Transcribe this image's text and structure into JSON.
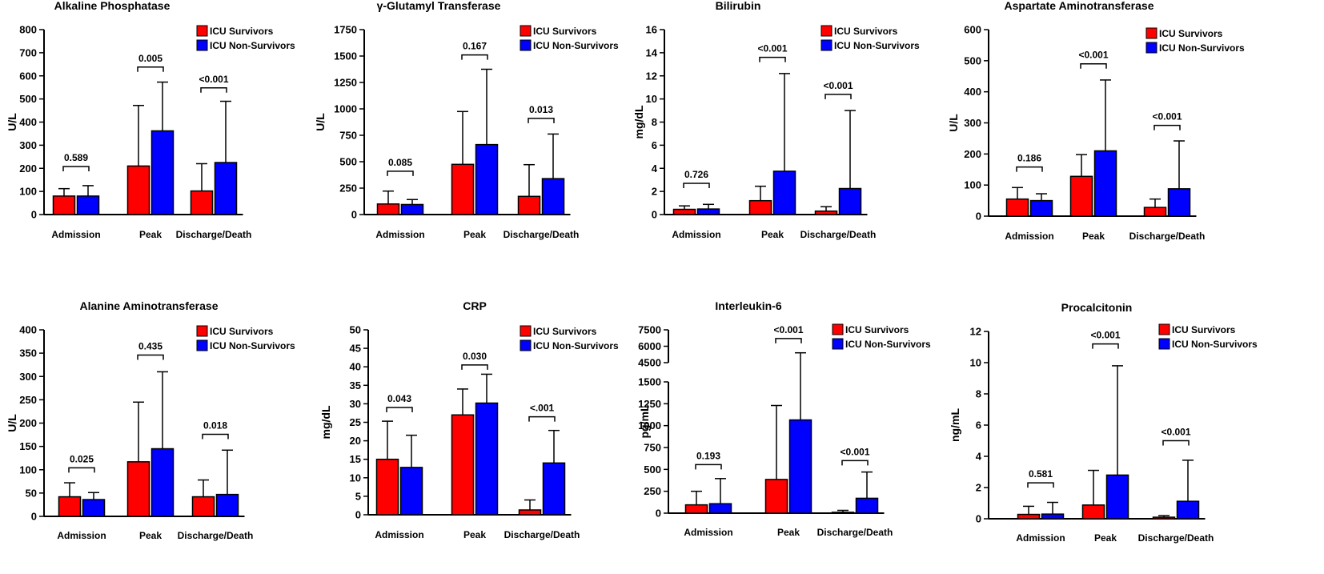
{
  "legend": {
    "survivors": "ICU Survivors",
    "non_survivors": "ICU Non-Survivors"
  },
  "colors": {
    "survivors": "#ff0000",
    "non_survivors": "#0000ff",
    "axis": "#000000"
  },
  "chart_data": [
    {
      "type": "bar",
      "title": "Alkaline Phosphatase",
      "ylabel": "U/L",
      "categories": [
        "Admission",
        "Peak",
        "Discharge/Death"
      ],
      "ylim": [
        0,
        800
      ],
      "yticks": [
        0,
        100,
        200,
        300,
        400,
        500,
        600,
        700,
        800
      ],
      "series": [
        {
          "name": "ICU Survivors",
          "values": [
            80,
            210,
            102
          ],
          "error_top": [
            112,
            472,
            220
          ]
        },
        {
          "name": "ICU Non-Survivors",
          "values": [
            80,
            362,
            225
          ],
          "error_top": [
            125,
            573,
            490
          ]
        }
      ],
      "p_values": [
        "0.589",
        "0.005",
        "<0.001"
      ],
      "bracket_y": [
        208,
        638,
        548
      ]
    },
    {
      "type": "bar",
      "title": "γ-Glutamyl Transferase",
      "ylabel": "U/L",
      "categories": [
        "Admission",
        "Peak",
        "Discharge/Death"
      ],
      "ylim": [
        0,
        1750
      ],
      "yticks": [
        0,
        250,
        500,
        750,
        1000,
        1250,
        1500,
        1750
      ],
      "series": [
        {
          "name": "ICU Survivors",
          "values": [
            100,
            475,
            172
          ],
          "error_top": [
            222,
            975,
            472
          ]
        },
        {
          "name": "ICU Non-Survivors",
          "values": [
            95,
            662,
            340
          ],
          "error_top": [
            142,
            1375,
            762
          ]
        }
      ],
      "p_values": [
        "0.085",
        "0.167",
        "0.013"
      ],
      "bracket_y": [
        410,
        1510,
        910
      ]
    },
    {
      "type": "bar",
      "title": "Bilirubin",
      "ylabel": "mg/dL",
      "categories": [
        "Admission",
        "Peak",
        "Discharge/Death"
      ],
      "ylim": [
        0,
        16
      ],
      "yticks": [
        0,
        2,
        4,
        6,
        8,
        10,
        12,
        14,
        16
      ],
      "series": [
        {
          "name": "ICU Survivors",
          "values": [
            0.45,
            1.2,
            0.3
          ],
          "error_top": [
            0.75,
            2.45,
            0.68
          ]
        },
        {
          "name": "ICU Non-Survivors",
          "values": [
            0.48,
            3.75,
            2.25
          ],
          "error_top": [
            0.88,
            12.2,
            9.0
          ]
        }
      ],
      "p_values": [
        "0.726",
        "<0.001",
        "<0.001"
      ],
      "bracket_y": [
        2.7,
        13.6,
        10.4
      ]
    },
    {
      "type": "bar",
      "title": "Aspartate Aminotransferase",
      "ylabel": "U/L",
      "categories": [
        "Admission",
        "Peak",
        "Discharge/Death"
      ],
      "ylim": [
        0,
        600
      ],
      "yticks": [
        0,
        100,
        200,
        300,
        400,
        500,
        600
      ],
      "series": [
        {
          "name": "ICU Survivors",
          "values": [
            55,
            128,
            28
          ],
          "error_top": [
            92,
            198,
            55
          ]
        },
        {
          "name": "ICU Non-Survivors",
          "values": [
            50,
            210,
            88
          ],
          "error_top": [
            72,
            438,
            242
          ]
        }
      ],
      "p_values": [
        "0.186",
        "<0.001",
        "<0.001"
      ],
      "bracket_y": [
        158,
        490,
        292
      ]
    },
    {
      "type": "bar",
      "title": "Alanine Aminotransferase",
      "ylabel": "U/L",
      "categories": [
        "Admission",
        "Peak",
        "Discharge/Death"
      ],
      "ylim": [
        0,
        400
      ],
      "yticks": [
        0,
        50,
        100,
        150,
        200,
        250,
        300,
        350,
        400
      ],
      "series": [
        {
          "name": "ICU Survivors",
          "values": [
            42,
            117,
            42
          ],
          "error_top": [
            72,
            245,
            78
          ]
        },
        {
          "name": "ICU Non-Survivors",
          "values": [
            36,
            145,
            47
          ],
          "error_top": [
            51,
            310,
            142
          ]
        }
      ],
      "p_values": [
        "0.025",
        "0.435",
        "0.018"
      ],
      "bracket_y": [
        104,
        346,
        176
      ]
    },
    {
      "type": "bar",
      "title": "CRP",
      "ylabel": "mg/dL",
      "categories": [
        "Admission",
        "Peak",
        "Discharge/Death"
      ],
      "ylim": [
        0,
        50
      ],
      "yticks": [
        0,
        5,
        10,
        15,
        20,
        25,
        30,
        35,
        40,
        45,
        50
      ],
      "series": [
        {
          "name": "ICU Survivors",
          "values": [
            15,
            27,
            1.3
          ],
          "error_top": [
            25.3,
            34,
            4
          ]
        },
        {
          "name": "ICU Non-Survivors",
          "values": [
            12.8,
            30.2,
            14
          ],
          "error_top": [
            21.5,
            38,
            22.8
          ]
        }
      ],
      "p_values": [
        "0.043",
        "0.030",
        "<.001"
      ],
      "bracket_y": [
        29,
        40.5,
        26.5
      ]
    },
    {
      "type": "bar",
      "title": "Interleukin-6",
      "ylabel": "pg/mL",
      "categories": [
        "Admission",
        "Peak",
        "Discharge/Death"
      ],
      "ylim": [
        0,
        7500
      ],
      "axis_break": [
        1500,
        4500
      ],
      "yticks": [
        0,
        250,
        500,
        750,
        1000,
        1250,
        1500,
        4500,
        6000,
        7500
      ],
      "series": [
        {
          "name": "ICU Survivors",
          "values": [
            95,
            385,
            10
          ],
          "error_top": [
            250,
            1230,
            32
          ]
        },
        {
          "name": "ICU Non-Survivors",
          "values": [
            108,
            1065,
            170
          ],
          "error_top": [
            395,
            5400,
            470
          ]
        }
      ],
      "p_values": [
        "0.193",
        "<0.001",
        "<0.001"
      ],
      "bracket_y": [
        555,
        6700,
        600
      ]
    },
    {
      "type": "bar",
      "title": "Procalcitonin",
      "ylabel": "ng/mL",
      "categories": [
        "Admission",
        "Peak",
        "Discharge/Death"
      ],
      "ylim": [
        0,
        12
      ],
      "yticks": [
        0,
        2,
        4,
        6,
        8,
        10,
        12
      ],
      "series": [
        {
          "name": "ICU Survivors",
          "values": [
            0.28,
            0.88,
            0.1
          ],
          "error_top": [
            0.8,
            3.1,
            0.2
          ]
        },
        {
          "name": "ICU Non-Survivors",
          "values": [
            0.3,
            2.8,
            1.12
          ],
          "error_top": [
            1.05,
            9.8,
            3.75
          ]
        }
      ],
      "p_values": [
        "0.581",
        "<0.001",
        "<0.001"
      ],
      "bracket_y": [
        2.3,
        11.2,
        5.0
      ]
    }
  ]
}
